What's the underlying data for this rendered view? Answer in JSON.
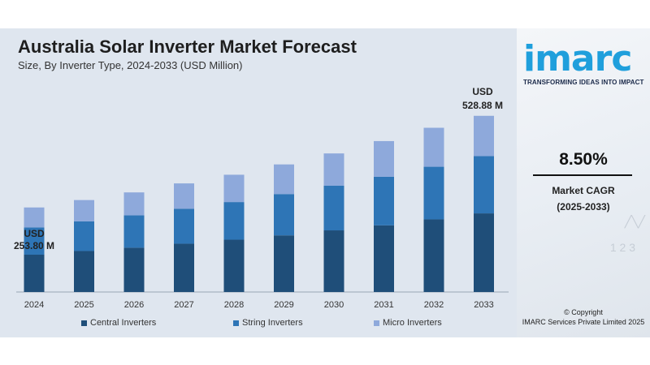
{
  "header": {
    "title": "Australia Solar Inverter Market Forecast",
    "subtitle": "Size, By Inverter Type, 2024-2033 (USD Million)"
  },
  "callouts": {
    "start": {
      "line1": "USD",
      "line2": "253.80 M"
    },
    "end": {
      "line1": "USD",
      "line2": "528.88 M"
    }
  },
  "sidebar": {
    "logo": "imarc",
    "tagline": "TRANSFORMING IDEAS INTO IMPACT",
    "cagr_value": "8.50%",
    "cagr_label_line1": "Market CAGR",
    "cagr_label_line2": "(2025-2033)",
    "copyright_line1": "© Copyright",
    "copyright_line2": "IMARC Services Private Limited 2025"
  },
  "colors": {
    "central": "#1f4e79",
    "string": "#2e75b6",
    "micro": "#8ea9db",
    "background": "#dfe6ef",
    "brand": "#1f9fdc"
  },
  "chart_data": {
    "type": "bar",
    "stacked": true,
    "categories": [
      "2024",
      "2025",
      "2026",
      "2027",
      "2028",
      "2029",
      "2030",
      "2031",
      "2032",
      "2033"
    ],
    "series": [
      {
        "name": "Central Inverters",
        "values": [
          112,
          123,
          133,
          145,
          157,
          170,
          185,
          200,
          218,
          236
        ]
      },
      {
        "name": "String Inverters",
        "values": [
          82,
          89,
          97,
          105,
          113,
          124,
          134,
          146,
          158,
          172
        ]
      },
      {
        "name": "Micro Inverters",
        "values": [
          59.8,
          64,
          69,
          76,
          82,
          89,
          97,
          107,
          117,
          120.88
        ]
      }
    ],
    "totals": [
      253.8,
      null,
      null,
      null,
      null,
      null,
      null,
      null,
      null,
      528.88
    ],
    "ylim": [
      0,
      560
    ],
    "grid": false,
    "legend": "bottom"
  }
}
